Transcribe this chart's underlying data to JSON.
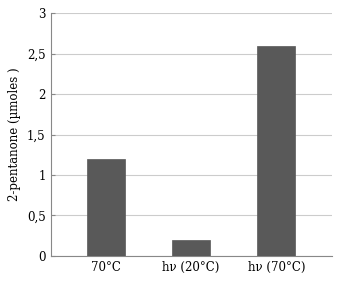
{
  "categories": [
    "70°C",
    "hν (20°C)",
    "hν (70°C)"
  ],
  "values": [
    1.2,
    0.2,
    2.6
  ],
  "bar_color": "#595959",
  "bar_edge_color": "#595959",
  "ylabel": "2-pentanone (µmoles )",
  "ylim": [
    0,
    3
  ],
  "yticks": [
    0,
    0.5,
    1,
    1.5,
    2,
    2.5,
    3
  ],
  "ytick_labels": [
    "0",
    "0,5",
    "1",
    "1,5",
    "2",
    "2,5",
    "3"
  ],
  "background_color": "#ffffff",
  "grid_color": "#cccccc",
  "bar_width": 0.45,
  "figsize": [
    3.4,
    2.82
  ],
  "dpi": 100
}
